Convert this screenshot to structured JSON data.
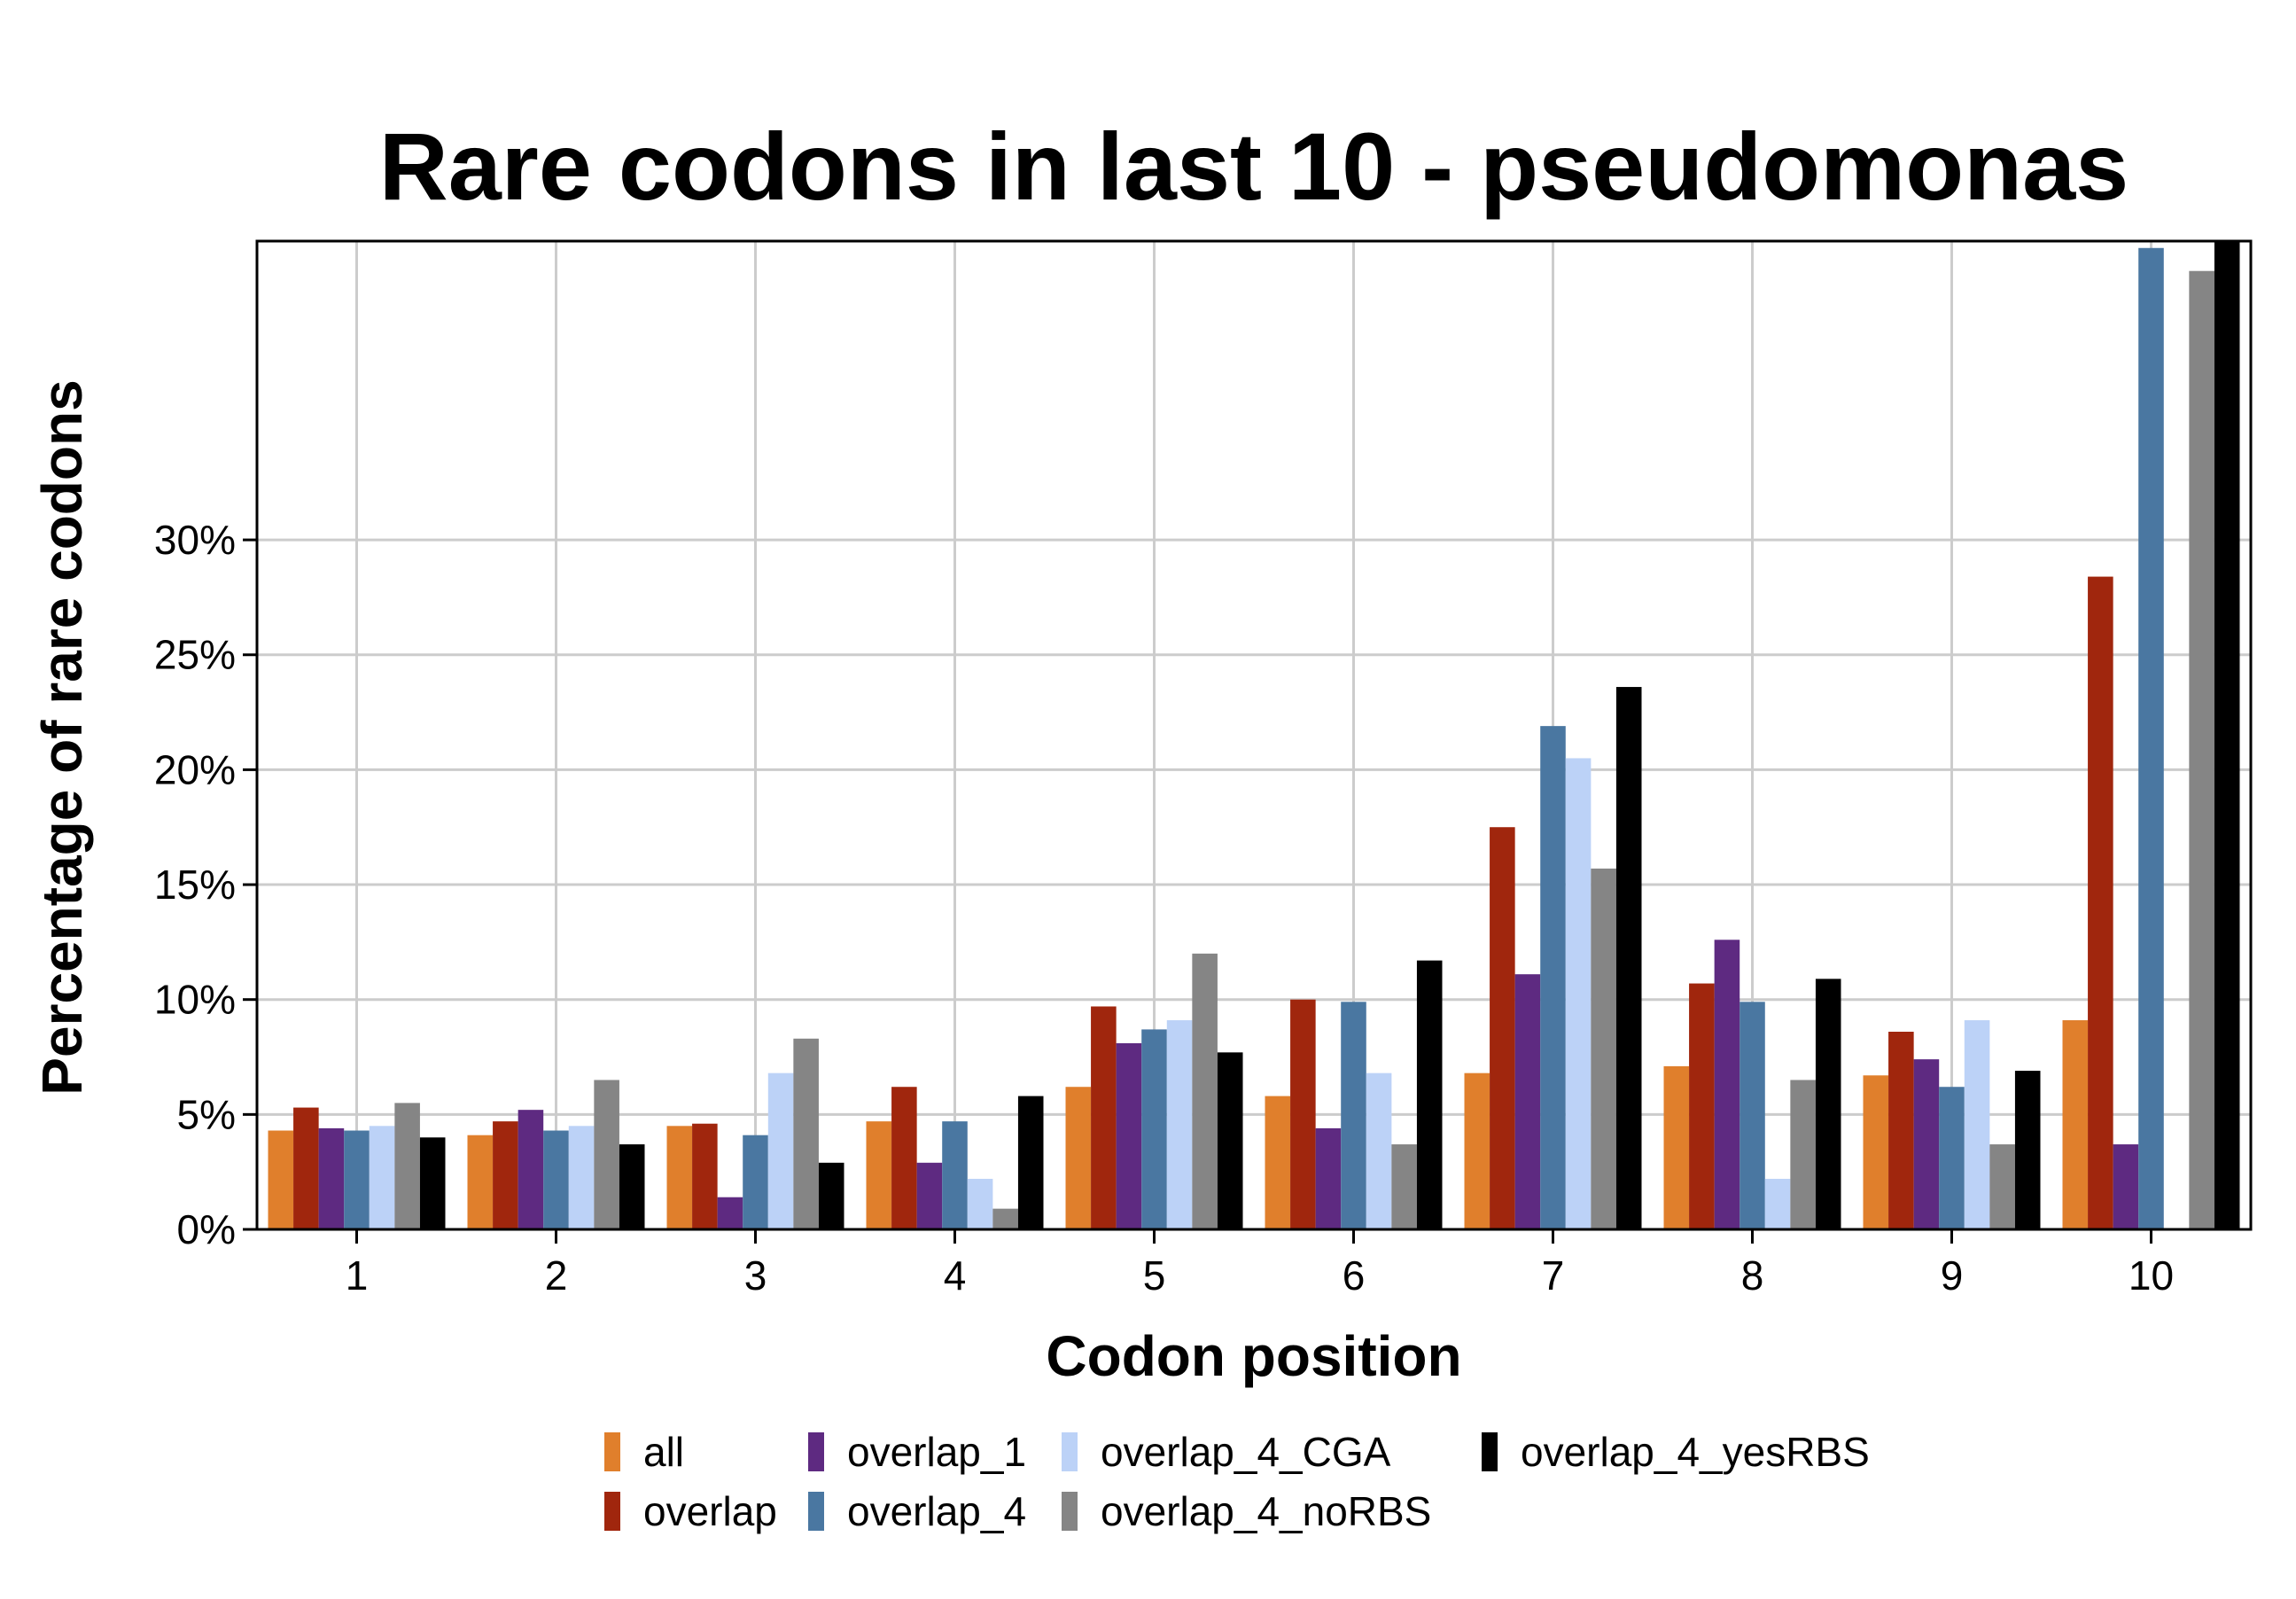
{
  "chart_data": {
    "type": "bar",
    "title": "Rare codons in last 10 - pseudomonas",
    "xlabel": "Codon position",
    "ylabel": "Percentage of rare codons",
    "categories": [
      "1",
      "2",
      "3",
      "4",
      "5",
      "6",
      "7",
      "8",
      "9",
      "10"
    ],
    "y_ticks": [
      "0%",
      "5%",
      "10%",
      "15%",
      "20%",
      "25%",
      "30%"
    ],
    "ylim": [
      0,
      43
    ],
    "grid": true,
    "legend_position": "bottom",
    "series": [
      {
        "name": "all",
        "color": "#E07F2C",
        "values": [
          4.3,
          4.1,
          4.5,
          4.7,
          6.2,
          5.8,
          6.8,
          7.1,
          6.7,
          9.1
        ]
      },
      {
        "name": "overlap",
        "color": "#A0260D",
        "values": [
          5.3,
          4.7,
          4.6,
          6.2,
          9.7,
          10.0,
          17.5,
          10.7,
          8.6,
          28.4
        ]
      },
      {
        "name": "overlap_1",
        "color": "#5E2A81",
        "values": [
          4.4,
          5.2,
          1.4,
          2.9,
          8.1,
          4.4,
          11.1,
          12.6,
          7.4,
          3.7
        ]
      },
      {
        "name": "overlap_4",
        "color": "#4A77A1",
        "values": [
          4.3,
          4.3,
          4.1,
          4.7,
          8.7,
          9.9,
          21.9,
          9.9,
          6.2,
          42.7
        ]
      },
      {
        "name": "overlap_4_CGA",
        "color": "#BCD2F7",
        "values": [
          4.5,
          4.5,
          6.8,
          2.2,
          9.1,
          6.8,
          20.5,
          2.2,
          9.1,
          0.0
        ]
      },
      {
        "name": "overlap_4_noRBS",
        "color": "#858585",
        "values": [
          5.5,
          6.5,
          8.3,
          0.9,
          12.0,
          3.7,
          15.7,
          6.5,
          3.7,
          41.7
        ]
      },
      {
        "name": "overlap_4_yesRBS",
        "color": "#000000",
        "values": [
          4.0,
          3.7,
          2.9,
          5.8,
          7.7,
          11.7,
          23.6,
          10.9,
          6.9,
          43.0
        ]
      }
    ]
  }
}
